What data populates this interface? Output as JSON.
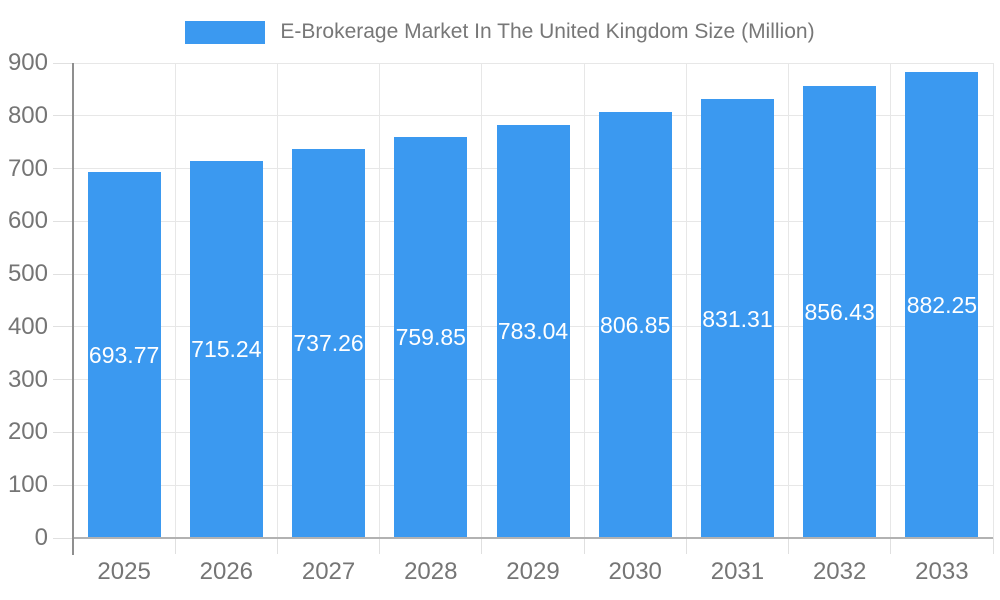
{
  "chart_data": {
    "type": "bar",
    "title": "E-Brokerage Market In The United Kingdom Size (Million)",
    "categories": [
      "2025",
      "2026",
      "2027",
      "2028",
      "2029",
      "2030",
      "2031",
      "2032",
      "2033"
    ],
    "values": [
      693.77,
      715.24,
      737.26,
      759.85,
      783.04,
      806.85,
      831.31,
      856.43,
      882.25
    ],
    "value_labels": [
      "693.77",
      "715.24",
      "737.26",
      "759.85",
      "783.04",
      "806.85",
      "831.31",
      "856.43",
      "882.25"
    ],
    "xlabel": "",
    "ylabel": "",
    "ylim": [
      0,
      900
    ],
    "ytick_step": 100,
    "yticks": [
      "0",
      "100",
      "200",
      "300",
      "400",
      "500",
      "600",
      "700",
      "800",
      "900"
    ],
    "grid": true,
    "legend_position": "top",
    "colors": {
      "bar": "#3B99F0",
      "value_label": "#FFFFFF",
      "axis_text": "#757575",
      "title_text": "#777777",
      "gridline": "#E7E7E7",
      "tick": "#E0E0E0",
      "y_axis_line": "#8F8F8F",
      "x_axis_line": "#B2B2B2",
      "background": "#FFFFFF"
    }
  }
}
